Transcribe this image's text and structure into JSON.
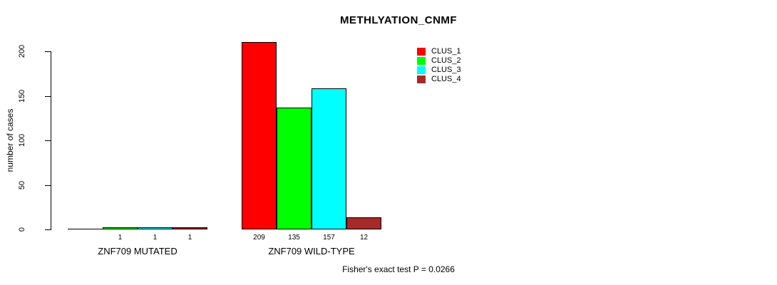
{
  "title": "METHLYATION_CNMF",
  "footer": "Fisher's exact test P = 0.0266",
  "y_axis": {
    "label": "number of cases",
    "ticks": [
      0,
      50,
      100,
      150,
      200
    ]
  },
  "colors": {
    "clus1": "#FF0000",
    "clus2": "#00FF00",
    "clus3": "#00FFFF",
    "clus4": "#A52A2A"
  },
  "chart_data": {
    "type": "bar",
    "title": "METHLYATION_CNMF",
    "xlabel": "",
    "ylabel": "number of cases",
    "ylim": [
      0,
      210
    ],
    "y_ticks": [
      0,
      50,
      100,
      150,
      200
    ],
    "grid": false,
    "legend_position": "top-right",
    "categories": [
      "ZNF709 MUTATED",
      "ZNF709 WILD-TYPE"
    ],
    "series": [
      {
        "name": "CLUS_1",
        "color": "#FF0000",
        "values": [
          0,
          209
        ]
      },
      {
        "name": "CLUS_2",
        "color": "#00FF00",
        "values": [
          1,
          135
        ]
      },
      {
        "name": "CLUS_3",
        "color": "#00FFFF",
        "values": [
          1,
          157
        ]
      },
      {
        "name": "CLUS_4",
        "color": "#A52A2A",
        "values": [
          1,
          12
        ]
      }
    ],
    "bar_labels": [
      [
        "",
        "1",
        "1",
        "1"
      ],
      [
        "209",
        "135",
        "157",
        "12"
      ]
    ],
    "annotation": "Fisher's exact test P = 0.0266"
  }
}
